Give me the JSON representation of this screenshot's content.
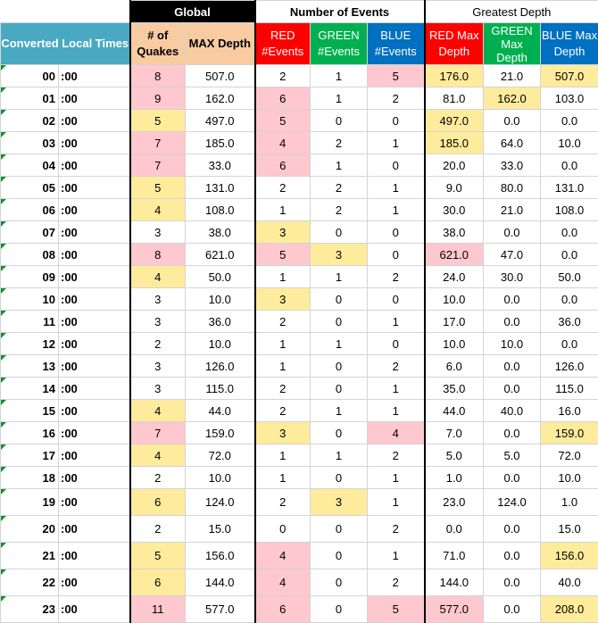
{
  "groups": {
    "global": "Global",
    "events": "Number of Events",
    "depth": "Greatest Depth"
  },
  "headers": {
    "time": "Converted Local Times",
    "quakes_line1": "# of",
    "quakes_line2": "Quakes",
    "max_depth": "MAX Depth",
    "red_events_line1": "RED",
    "red_events_line2": "#Events",
    "green_events_line1": "GREEN",
    "green_events_line2": "#Events",
    "blue_events_line1": "BLUE",
    "blue_events_line2": "#Events",
    "red_max_line1": "RED Max",
    "red_max_line2": "Depth",
    "green_max_line1": "GREEN",
    "green_max_line2": "Max",
    "green_max_line3": "Depth",
    "blue_max_line1": "BLUE Max",
    "blue_max_line2": "Depth"
  },
  "minute_suffix": ":00",
  "highlight_colors": {
    "pink": "#ffc7ce",
    "yellow": "#ffeb9c"
  },
  "rows": [
    {
      "hour": "00",
      "quakes": "8",
      "maxd": "507.0",
      "red": "2",
      "green": "1",
      "blue": "5",
      "redd": "176.0",
      "greend": "21.0",
      "blued": "507.0",
      "hl": [
        "pink",
        "",
        "",
        "",
        "pink",
        "yellow",
        "",
        "yellow"
      ]
    },
    {
      "hour": "01",
      "quakes": "9",
      "maxd": "162.0",
      "red": "6",
      "green": "1",
      "blue": "2",
      "redd": "81.0",
      "greend": "162.0",
      "blued": "103.0",
      "hl": [
        "pink",
        "",
        "pink",
        "",
        "",
        "",
        "yellow",
        ""
      ]
    },
    {
      "hour": "02",
      "quakes": "5",
      "maxd": "497.0",
      "red": "5",
      "green": "0",
      "blue": "0",
      "redd": "497.0",
      "greend": "0.0",
      "blued": "0.0",
      "hl": [
        "yellow",
        "",
        "pink",
        "",
        "",
        "yellow",
        "",
        ""
      ]
    },
    {
      "hour": "03",
      "quakes": "7",
      "maxd": "185.0",
      "red": "4",
      "green": "2",
      "blue": "1",
      "redd": "185.0",
      "greend": "64.0",
      "blued": "10.0",
      "hl": [
        "pink",
        "",
        "pink",
        "",
        "",
        "yellow",
        "",
        ""
      ]
    },
    {
      "hour": "04",
      "quakes": "7",
      "maxd": "33.0",
      "red": "6",
      "green": "1",
      "blue": "0",
      "redd": "20.0",
      "greend": "33.0",
      "blued": "0.0",
      "hl": [
        "pink",
        "",
        "pink",
        "",
        "",
        "",
        "",
        ""
      ]
    },
    {
      "hour": "05",
      "quakes": "5",
      "maxd": "131.0",
      "red": "2",
      "green": "2",
      "blue": "1",
      "redd": "9.0",
      "greend": "80.0",
      "blued": "131.0",
      "hl": [
        "yellow",
        "",
        "",
        "",
        "",
        "",
        "",
        ""
      ]
    },
    {
      "hour": "06",
      "quakes": "4",
      "maxd": "108.0",
      "red": "1",
      "green": "2",
      "blue": "1",
      "redd": "30.0",
      "greend": "21.0",
      "blued": "108.0",
      "hl": [
        "yellow",
        "",
        "",
        "",
        "",
        "",
        "",
        ""
      ]
    },
    {
      "hour": "07",
      "quakes": "3",
      "maxd": "38.0",
      "red": "3",
      "green": "0",
      "blue": "0",
      "redd": "38.0",
      "greend": "0.0",
      "blued": "0.0",
      "hl": [
        "",
        "",
        "yellow",
        "",
        "",
        "",
        "",
        ""
      ]
    },
    {
      "hour": "08",
      "quakes": "8",
      "maxd": "621.0",
      "red": "5",
      "green": "3",
      "blue": "0",
      "redd": "621.0",
      "greend": "47.0",
      "blued": "0.0",
      "hl": [
        "pink",
        "",
        "pink",
        "yellow",
        "",
        "pink",
        "",
        ""
      ]
    },
    {
      "hour": "09",
      "quakes": "4",
      "maxd": "50.0",
      "red": "1",
      "green": "1",
      "blue": "2",
      "redd": "24.0",
      "greend": "30.0",
      "blued": "50.0",
      "hl": [
        "yellow",
        "",
        "",
        "",
        "",
        "",
        "",
        ""
      ]
    },
    {
      "hour": "10",
      "quakes": "3",
      "maxd": "10.0",
      "red": "3",
      "green": "0",
      "blue": "0",
      "redd": "10.0",
      "greend": "0.0",
      "blued": "0.0",
      "hl": [
        "",
        "",
        "yellow",
        "",
        "",
        "",
        "",
        ""
      ]
    },
    {
      "hour": "11",
      "quakes": "3",
      "maxd": "36.0",
      "red": "2",
      "green": "0",
      "blue": "1",
      "redd": "17.0",
      "greend": "0.0",
      "blued": "36.0",
      "hl": [
        "",
        "",
        "",
        "",
        "",
        "",
        "",
        ""
      ]
    },
    {
      "hour": "12",
      "quakes": "2",
      "maxd": "10.0",
      "red": "1",
      "green": "1",
      "blue": "0",
      "redd": "10.0",
      "greend": "10.0",
      "blued": "0.0",
      "hl": [
        "",
        "",
        "",
        "",
        "",
        "",
        "",
        ""
      ]
    },
    {
      "hour": "13",
      "quakes": "3",
      "maxd": "126.0",
      "red": "1",
      "green": "0",
      "blue": "2",
      "redd": "6.0",
      "greend": "0.0",
      "blued": "126.0",
      "hl": [
        "",
        "",
        "",
        "",
        "",
        "",
        "",
        ""
      ]
    },
    {
      "hour": "14",
      "quakes": "3",
      "maxd": "115.0",
      "red": "2",
      "green": "0",
      "blue": "1",
      "redd": "35.0",
      "greend": "0.0",
      "blued": "115.0",
      "hl": [
        "",
        "",
        "",
        "",
        "",
        "",
        "",
        ""
      ]
    },
    {
      "hour": "15",
      "quakes": "4",
      "maxd": "44.0",
      "red": "2",
      "green": "1",
      "blue": "1",
      "redd": "44.0",
      "greend": "40.0",
      "blued": "16.0",
      "hl": [
        "yellow",
        "",
        "",
        "",
        "",
        "",
        "",
        ""
      ]
    },
    {
      "hour": "16",
      "quakes": "7",
      "maxd": "159.0",
      "red": "3",
      "green": "0",
      "blue": "4",
      "redd": "7.0",
      "greend": "0.0",
      "blued": "159.0",
      "hl": [
        "pink",
        "",
        "yellow",
        "",
        "pink",
        "",
        "",
        "yellow"
      ]
    },
    {
      "hour": "17",
      "quakes": "4",
      "maxd": "72.0",
      "red": "1",
      "green": "1",
      "blue": "2",
      "redd": "5.0",
      "greend": "5.0",
      "blued": "72.0",
      "hl": [
        "yellow",
        "",
        "",
        "",
        "",
        "",
        "",
        ""
      ]
    },
    {
      "hour": "18",
      "quakes": "2",
      "maxd": "10.0",
      "red": "1",
      "green": "0",
      "blue": "1",
      "redd": "1.0",
      "greend": "0.0",
      "blued": "10.0",
      "hl": [
        "",
        "",
        "",
        "",
        "",
        "",
        "",
        ""
      ]
    },
    {
      "hour": "19",
      "quakes": "6",
      "maxd": "124.0",
      "red": "2",
      "green": "3",
      "blue": "1",
      "redd": "23.0",
      "greend": "124.0",
      "blued": "1.0",
      "hl": [
        "yellow",
        "",
        "",
        "yellow",
        "",
        "",
        "",
        ""
      ]
    },
    {
      "hour": "20",
      "quakes": "2",
      "maxd": "15.0",
      "red": "0",
      "green": "0",
      "blue": "2",
      "redd": "0.0",
      "greend": "0.0",
      "blued": "15.0",
      "hl": [
        "",
        "",
        "",
        "",
        "",
        "",
        "",
        ""
      ]
    },
    {
      "hour": "21",
      "quakes": "5",
      "maxd": "156.0",
      "red": "4",
      "green": "0",
      "blue": "1",
      "redd": "71.0",
      "greend": "0.0",
      "blued": "156.0",
      "hl": [
        "yellow",
        "",
        "pink",
        "",
        "",
        "",
        "",
        "yellow"
      ]
    },
    {
      "hour": "22",
      "quakes": "6",
      "maxd": "144.0",
      "red": "4",
      "green": "0",
      "blue": "2",
      "redd": "144.0",
      "greend": "0.0",
      "blued": "40.0",
      "hl": [
        "yellow",
        "",
        "pink",
        "",
        "",
        "",
        "",
        ""
      ]
    },
    {
      "hour": "23",
      "quakes": "11",
      "maxd": "577.0",
      "red": "6",
      "green": "0",
      "blue": "5",
      "redd": "577.0",
      "greend": "0.0",
      "blued": "208.0",
      "hl": [
        "pink",
        "",
        "pink",
        "",
        "pink",
        "pink",
        "",
        "yellow"
      ]
    }
  ]
}
